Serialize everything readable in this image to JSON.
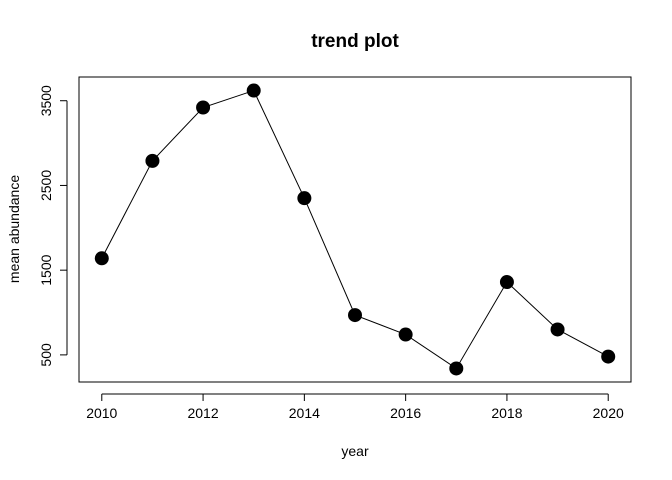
{
  "chart_data": {
    "type": "line",
    "title": "trend plot",
    "xlabel": "year",
    "ylabel": "mean abundance",
    "x": [
      2010,
      2011,
      2012,
      2013,
      2014,
      2015,
      2016,
      2017,
      2018,
      2019,
      2020
    ],
    "series": [
      {
        "values": [
          1640,
          2790,
          3420,
          3620,
          2350,
          970,
          740,
          340,
          1360,
          800,
          480
        ]
      }
    ],
    "xlim": [
      2009.55,
      2020.45
    ],
    "ylim": [
      180,
      3780
    ],
    "xticks": [
      "2010",
      "2012",
      "2014",
      "2016",
      "2018",
      "2020"
    ],
    "yticks": [
      "500",
      "1500",
      "2500",
      "3500"
    ],
    "marker": "filled-circle",
    "line_color": "#000000",
    "marker_color": "#000000",
    "grid": false,
    "legend": "none"
  }
}
